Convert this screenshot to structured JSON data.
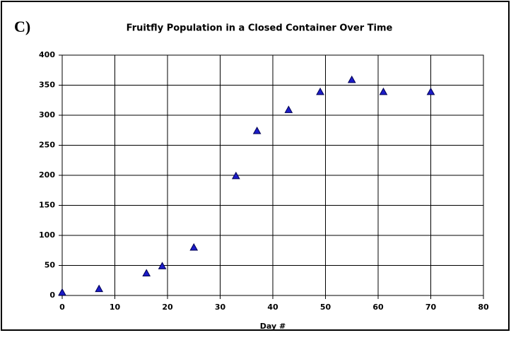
{
  "chart_data": {
    "type": "scatter",
    "annotation": "C)",
    "title": "Fruitfly Population in a Closed Container Over Time",
    "x_label": "Day #",
    "x": [
      0,
      7,
      16,
      19,
      25,
      33,
      37,
      43,
      49,
      55,
      61,
      70
    ],
    "series": [
      {
        "color": "#1c1cc8",
        "values": [
          5,
          11,
          37,
          49,
          80,
          199,
          274,
          309,
          339,
          359,
          339,
          339
        ]
      }
    ],
    "xlim": [
      0,
      80
    ],
    "xticks": [
      0,
      10,
      20,
      30,
      40,
      50,
      60,
      70,
      80
    ],
    "ylim": [
      0,
      400
    ],
    "yticks": [
      0,
      50,
      100,
      150,
      200,
      250,
      300,
      350,
      400
    ],
    "grid": true
  }
}
